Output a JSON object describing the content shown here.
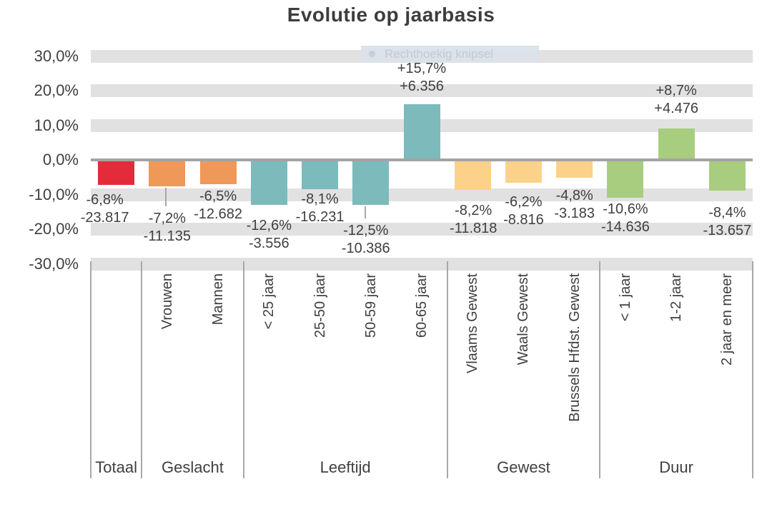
{
  "snip_overlay": {
    "text": "Rechthoekig knipsel"
  },
  "chart_data": {
    "type": "bar",
    "title": "Evolutie op jaarbasis",
    "value_unit": "percent change year-on-year",
    "ylim": [
      -30,
      30
    ],
    "grid": "horizontal-bands",
    "legend": "none",
    "y_ticks": [
      {
        "label": "30,0%",
        "value": 30
      },
      {
        "label": "20,0%",
        "value": 20
      },
      {
        "label": "10,0%",
        "value": 10
      },
      {
        "label": "0,0%",
        "value": 0
      },
      {
        "label": "-10,0%",
        "value": -10
      },
      {
        "label": "-20,0%",
        "value": -20
      },
      {
        "label": "-30,0%",
        "value": -30
      }
    ],
    "groups": [
      {
        "label": "Totaal",
        "color": "#e32b3a",
        "points": [
          {
            "category": "",
            "pct": -6.8,
            "pct_label": "-6,8%",
            "count_label": "-23.817"
          }
        ]
      },
      {
        "label": "Geslacht",
        "color": "#f0975a",
        "points": [
          {
            "category": "Vrouwen",
            "pct": -7.2,
            "pct_label": "-7,2%",
            "count_label": "-11.135"
          },
          {
            "category": "Mannen",
            "pct": -6.5,
            "pct_label": "-6,5%",
            "count_label": "-12.682"
          }
        ]
      },
      {
        "label": "Leeftijd",
        "color": "#7cbabc",
        "points": [
          {
            "category": "< 25 jaar",
            "pct": -12.6,
            "pct_label": "-12,6%",
            "count_label": "-3.556"
          },
          {
            "category": "25-50 jaar",
            "pct": -8.1,
            "pct_label": "-8,1%",
            "count_label": "-16.231"
          },
          {
            "category": "50-59 jaar",
            "pct": -12.5,
            "pct_label": "-12,5%",
            "count_label": "-10.386"
          },
          {
            "category": "60-65 jaar",
            "pct": 15.7,
            "pct_label": "+15,7%",
            "count_label": "+6.356"
          }
        ]
      },
      {
        "label": "Gewest",
        "color": "#fcd28a",
        "points": [
          {
            "category": "Vlaams Gewest",
            "pct": -8.2,
            "pct_label": "-8,2%",
            "count_label": "-11.818"
          },
          {
            "category": "Waals Gewest",
            "pct": -6.2,
            "pct_label": "-6,2%",
            "count_label": "-8.816"
          },
          {
            "category": "Brussels Hfdst. Gewest",
            "pct": -4.8,
            "pct_label": "-4,8%",
            "count_label": "-3.183"
          }
        ]
      },
      {
        "label": "Duur",
        "color": "#a9cd7f",
        "points": [
          {
            "category": "< 1 jaar",
            "pct": -10.6,
            "pct_label": "-10,6%",
            "count_label": "-14.636"
          },
          {
            "category": "1-2 jaar",
            "pct": 8.7,
            "pct_label": "+8,7%",
            "count_label": "+4.476"
          },
          {
            "category": "2 jaar en meer",
            "pct": -8.4,
            "pct_label": "-8,4%",
            "count_label": "-13.657"
          }
        ]
      }
    ],
    "colors": {
      "grid_band": "#e1e1e1",
      "zero_line": "#a3a3a3",
      "text": "#3f3f3f"
    }
  }
}
